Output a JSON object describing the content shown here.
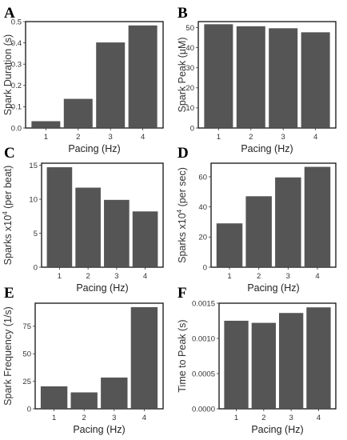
{
  "colors": {
    "bar_fill": "#555555",
    "bar_edge": "#ffffff",
    "frame": "#111111",
    "background": "#ffffff"
  },
  "chart_data": [
    {
      "panel": "A",
      "type": "bar",
      "categories": [
        "1",
        "2",
        "3",
        "4"
      ],
      "values": [
        0.035,
        0.14,
        0.405,
        0.485
      ],
      "xlabel": "Pacing (Hz)",
      "ylabel": "Spark Duration (s)",
      "ylim": [
        0,
        0.5
      ],
      "yticks": [
        0.0,
        0.1,
        0.2,
        0.3,
        0.4,
        0.5
      ],
      "ytick_labels": [
        "0.0",
        "0.1",
        "0.2",
        "0.3",
        "0.4",
        "0.5"
      ],
      "grid": false
    },
    {
      "panel": "B",
      "type": "bar",
      "categories": [
        "1",
        "2",
        "3",
        "4"
      ],
      "values": [
        52,
        51,
        50,
        48
      ],
      "xlabel": "Pacing (Hz)",
      "ylabel": "Spark Peak (μM)",
      "ylim": [
        0,
        53
      ],
      "yticks": [
        0,
        10,
        20,
        30,
        40,
        50
      ],
      "ytick_labels": [
        "0",
        "10",
        "20",
        "30",
        "40",
        "50"
      ],
      "grid": false
    },
    {
      "panel": "C",
      "type": "bar",
      "categories": [
        "1",
        "2",
        "3",
        "4"
      ],
      "values": [
        14.8,
        11.8,
        10.0,
        8.3
      ],
      "xlabel": "Pacing (Hz)",
      "ylabel": "Sparks x10",
      "ylabel_superscript": "4",
      "ylabel_suffix": " (per beat)",
      "ylim": [
        0,
        15.3
      ],
      "yticks": [
        0,
        5,
        10,
        15
      ],
      "ytick_labels": [
        "0",
        "5",
        "10",
        "15"
      ],
      "grid": false
    },
    {
      "panel": "D",
      "type": "bar",
      "categories": [
        "1",
        "2",
        "3",
        "4"
      ],
      "values": [
        29.5,
        47.5,
        60,
        67
      ],
      "xlabel": "Pacing (Hz)",
      "ylabel": "Sparks x10",
      "ylabel_superscript": "4",
      "ylabel_suffix": " (per sec)",
      "ylim": [
        0,
        69
      ],
      "yticks": [
        0,
        20,
        40,
        60
      ],
      "ytick_labels": [
        "0",
        "20",
        "40",
        "60"
      ],
      "grid": false
    },
    {
      "panel": "E",
      "type": "bar",
      "categories": [
        "1",
        "2",
        "3",
        "4"
      ],
      "values": [
        21,
        15.5,
        29,
        93
      ],
      "xlabel": "Pacing (Hz)",
      "ylabel": "Spark Frequency (1/s)",
      "ylim": [
        0,
        96
      ],
      "yticks": [
        0,
        25,
        50,
        75
      ],
      "ytick_labels": [
        "0",
        "25",
        "50",
        "75"
      ],
      "grid": false
    },
    {
      "panel": "F",
      "type": "bar",
      "categories": [
        "1",
        "2",
        "3",
        "4"
      ],
      "values": [
        0.00126,
        0.00123,
        0.00137,
        0.00145
      ],
      "xlabel": "Pacing (Hz)",
      "ylabel": "Time to Peak (s)",
      "ylim": [
        0,
        0.0015
      ],
      "yticks": [
        0,
        0.0005,
        0.001,
        0.0015
      ],
      "ytick_labels": [
        "0.0000",
        "0.0005",
        "0.0010",
        "0.0015"
      ],
      "grid": false
    }
  ]
}
